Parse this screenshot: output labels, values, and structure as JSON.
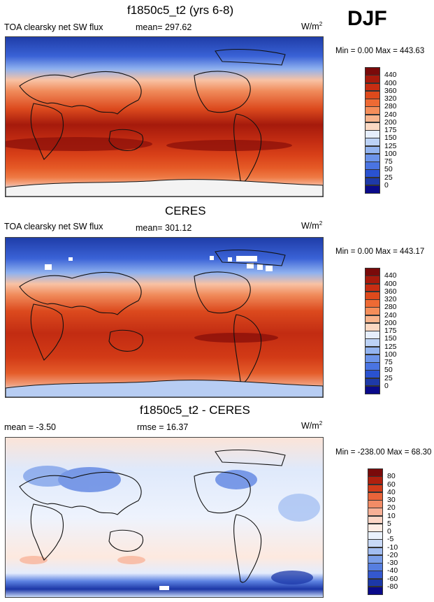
{
  "season": "DJF",
  "units_main": "W/m",
  "units_sup": "2",
  "panels": [
    {
      "title": "f1850c5_t2 (yrs 6-8)",
      "left_text": "TOA clearsky net SW flux",
      "center_text": "mean= 297.62",
      "minmax": "Min =   0.00 Max = 443.63",
      "colorbar_labels": [
        "440",
        "400",
        "360",
        "320",
        "280",
        "240",
        "200",
        "175",
        "150",
        "125",
        "100",
        "75",
        "50",
        "25",
        "0"
      ]
    },
    {
      "title": "CERES",
      "left_text": "TOA clearsky net SW flux",
      "center_text": "mean= 301.12",
      "minmax": "Min =   0.00 Max = 443.17",
      "colorbar_labels": [
        "440",
        "400",
        "360",
        "320",
        "280",
        "240",
        "200",
        "175",
        "150",
        "125",
        "100",
        "75",
        "50",
        "25",
        "0"
      ]
    },
    {
      "title": "f1850c5_t2 - CERES",
      "left_text": "mean =  -3.50",
      "center_text": "rmse =  16.37",
      "minmax": "Min = -238.00 Max =  68.30",
      "colorbar_labels": [
        "80",
        "60",
        "40",
        "30",
        "20",
        "10",
        "5",
        "0",
        "-5",
        "-10",
        "-20",
        "-30",
        "-40",
        "-60",
        "-80"
      ]
    }
  ],
  "colors": {
    "abs_scale": [
      "#7a0a0a",
      "#a81a0c",
      "#c82d12",
      "#de4a1c",
      "#ee6a34",
      "#f58e5a",
      "#f9b48c",
      "#fbd8c2",
      "#e6eefc",
      "#bcd2f6",
      "#93b4f0",
      "#6c94ea",
      "#4a74e2",
      "#2a52d0",
      "#1e3aa8",
      "#0a0a8a"
    ],
    "diff_scale": [
      "#7a0a0a",
      "#b0200e",
      "#d23c1a",
      "#e8643a",
      "#f28c66",
      "#f8b096",
      "#fcd6c6",
      "#fdece4",
      "#eaf1fd",
      "#c8d9f7",
      "#a2bdf1",
      "#7a9ee9",
      "#567ee0",
      "#3458cf",
      "#1c38a8",
      "#0a0a8a"
    ]
  }
}
